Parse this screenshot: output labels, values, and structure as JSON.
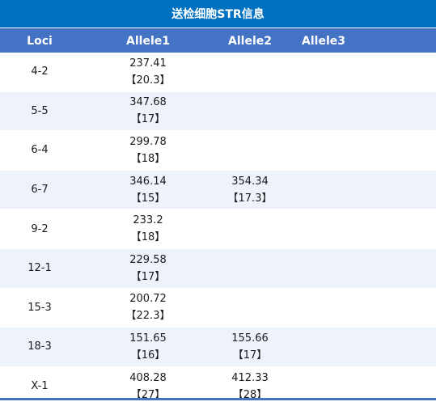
{
  "title": "送检细胞STR信息",
  "headers": {
    "loci": "Loci",
    "allele1": "Allele1",
    "allele2": "Allele2",
    "allele3": "Allele3"
  },
  "rows": [
    {
      "loci": "4-2",
      "a1_size": "237.41",
      "a1_call": "【20.3】",
      "a2_size": "",
      "a2_call": ""
    },
    {
      "loci": "5-5",
      "a1_size": "347.68",
      "a1_call": "【17】",
      "a2_size": "",
      "a2_call": ""
    },
    {
      "loci": "6-4",
      "a1_size": "299.78",
      "a1_call": "【18】",
      "a2_size": "",
      "a2_call": ""
    },
    {
      "loci": "6-7",
      "a1_size": "346.14",
      "a1_call": "【15】",
      "a2_size": "354.34",
      "a2_call": "【17.3】"
    },
    {
      "loci": "9-2",
      "a1_size": "233.2",
      "a1_call": "【18】",
      "a2_size": "",
      "a2_call": ""
    },
    {
      "loci": "12-1",
      "a1_size": "229.58",
      "a1_call": "【17】",
      "a2_size": "",
      "a2_call": ""
    },
    {
      "loci": "15-3",
      "a1_size": "200.72",
      "a1_call": "【22.3】",
      "a2_size": "",
      "a2_call": ""
    },
    {
      "loci": "18-3",
      "a1_size": "151.65",
      "a1_call": "【16】",
      "a2_size": "155.66",
      "a2_call": "【17】"
    },
    {
      "loci": "X-1",
      "a1_size": "408.28",
      "a1_call": "【27】",
      "a2_size": "412.33",
      "a2_call": "【28】"
    }
  ],
  "colors": {
    "title_bg": "#0070c0",
    "header_bg": "#4472c4",
    "stripe_bg": "#eef2fa"
  }
}
